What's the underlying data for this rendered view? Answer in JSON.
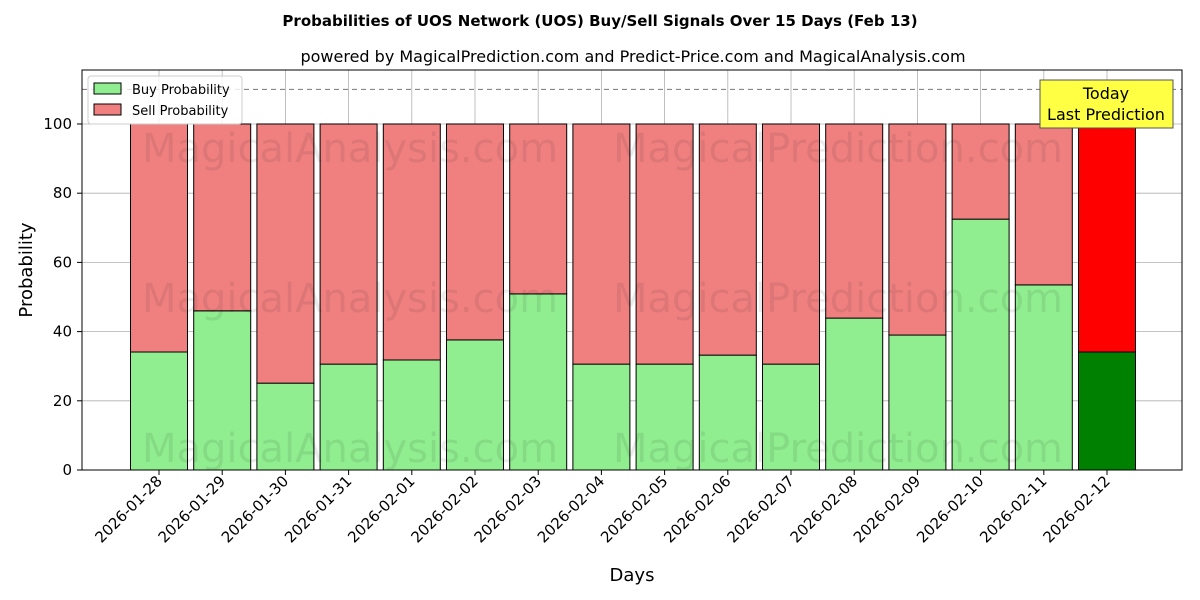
{
  "chart_data": {
    "type": "bar",
    "stacked": true,
    "title": "Probabilities of UOS Network (UOS) Buy/Sell Signals Over 15 Days (Feb 13)",
    "subtitle": "powered by MagicalPrediction.com and Predict-Price.com and MagicalAnalysis.com",
    "xlabel": "Days",
    "ylabel": "Probability",
    "ylim": [
      0,
      115.6
    ],
    "yticks": [
      "0",
      "20",
      "40",
      "60",
      "80",
      "100"
    ],
    "grid": true,
    "legend_placement": "top-left",
    "categories": [
      "2026-01-28",
      "2026-01-29",
      "2026-01-30",
      "2026-01-31",
      "2026-02-01",
      "2026-02-02",
      "2026-02-03",
      "2026-02-04",
      "2026-02-05",
      "2026-02-06",
      "2026-02-07",
      "2026-02-08",
      "2026-02-09",
      "2026-02-10",
      "2026-02-11",
      "2026-02-12"
    ],
    "series": [
      {
        "name": "Buy Probability",
        "color": "#90ee90",
        "today_color": "#008000",
        "values": [
          34.1,
          46.0,
          25.1,
          30.6,
          31.8,
          37.6,
          50.9,
          30.6,
          30.6,
          33.2,
          30.6,
          43.9,
          39.0,
          72.5,
          53.5,
          34.1
        ]
      },
      {
        "name": "Sell Probability",
        "color": "#f08080",
        "today_color": "#ff0000",
        "values": [
          65.9,
          54.0,
          74.9,
          69.4,
          68.2,
          62.4,
          49.1,
          69.4,
          69.4,
          66.8,
          69.4,
          56.1,
          61.0,
          27.5,
          46.5,
          65.9
        ]
      }
    ],
    "reference_line": 110,
    "annotation": {
      "line1": "Today",
      "line2": "Last Prediction",
      "color": "#ffff44"
    },
    "watermarks": [
      "MagicalAnalysis.com",
      "MagicalPrediction.com"
    ]
  }
}
